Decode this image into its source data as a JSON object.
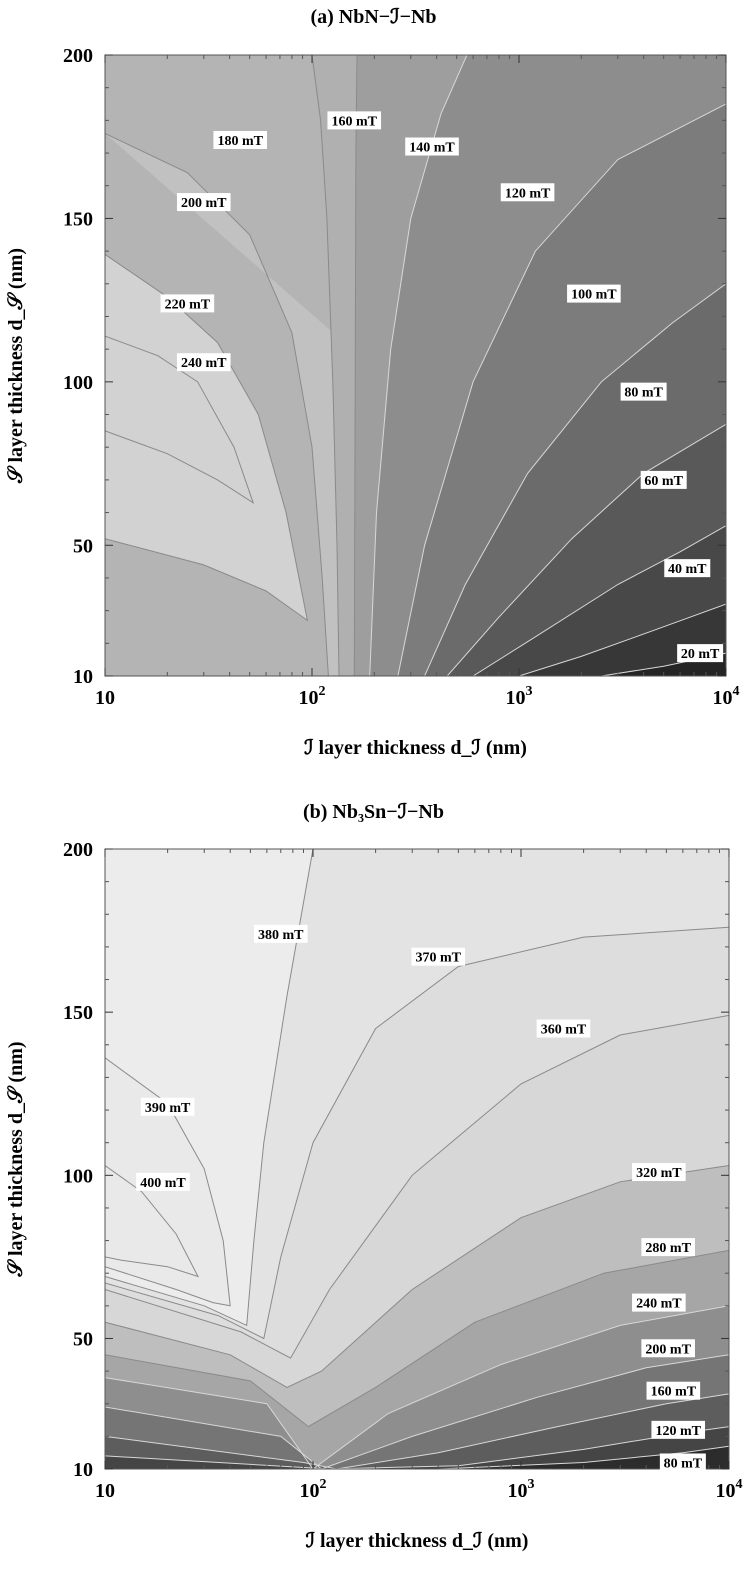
{
  "chart_data": [
    {
      "type": "contour",
      "panel": "a",
      "title": "(a) NbN−ℐ−Nb",
      "xlabel": "ℐ  layer thickness d_ℐ  (nm)",
      "ylabel": "𝒮  layer thickness d_𝒮  (nm)",
      "x_scale": "log",
      "xlim": [
        10,
        10000
      ],
      "ylim": [
        10,
        200
      ],
      "x_ticks": [
        "10",
        "10^2",
        "10^3",
        "10^4"
      ],
      "y_ticks": [
        "10",
        "50",
        "100",
        "150",
        "200"
      ],
      "grid": false,
      "contour_labels": [
        "240 mT",
        "220 mT",
        "200 mT",
        "180 mT",
        "160 mT",
        "140 mT",
        "120 mT",
        "100 mT",
        "80 mT",
        "60 mT",
        "40 mT",
        "20 mT"
      ],
      "contours": [
        {
          "level": "240 mT",
          "points": [
            [
              10,
              85
            ],
            [
              20,
              78
            ],
            [
              35,
              70
            ],
            [
              52,
              63
            ],
            [
              42,
              80
            ],
            [
              28,
              100
            ],
            [
              18,
              108
            ],
            [
              10,
              114
            ]
          ]
        },
        {
          "level": "220 mT",
          "points": [
            [
              10,
              52
            ],
            [
              30,
              44
            ],
            [
              60,
              36
            ],
            [
              95,
              27
            ],
            [
              75,
              60
            ],
            [
              55,
              90
            ],
            [
              35,
              112
            ],
            [
              20,
              126
            ],
            [
              10,
              139
            ]
          ]
        },
        {
          "level": "200 mT",
          "points": [
            [
              120,
              10
            ],
            [
              112,
              40
            ],
            [
              100,
              80
            ],
            [
              80,
              115
            ],
            [
              50,
              145
            ],
            [
              25,
              164
            ],
            [
              10,
              176
            ]
          ]
        },
        {
          "level": "180 mT",
          "points": [
            [
              135,
              10
            ],
            [
              132,
              50
            ],
            [
              126,
              100
            ],
            [
              118,
              150
            ],
            [
              110,
              180
            ],
            [
              100,
              200
            ]
          ]
        },
        {
          "level": "160 mT",
          "points": [
            [
              160,
              10
            ],
            [
              161,
              60
            ],
            [
              162,
              120
            ],
            [
              163,
              170
            ],
            [
              165,
              200
            ]
          ]
        },
        {
          "level": "140 mT",
          "points": [
            [
              190,
              10
            ],
            [
              205,
              60
            ],
            [
              240,
              110
            ],
            [
              300,
              150
            ],
            [
              420,
              182
            ],
            [
              560,
              200
            ]
          ]
        },
        {
          "level": "120 mT",
          "points": [
            [
              260,
              10
            ],
            [
              350,
              50
            ],
            [
              600,
              100
            ],
            [
              1200,
              140
            ],
            [
              3000,
              168
            ],
            [
              10000,
              185
            ]
          ]
        },
        {
          "level": "100 mT",
          "points": [
            [
              350,
              10
            ],
            [
              550,
              38
            ],
            [
              1100,
              72
            ],
            [
              2500,
              100
            ],
            [
              5500,
              118
            ],
            [
              10000,
              130
            ]
          ]
        },
        {
          "level": "80 mT",
          "points": [
            [
              450,
              10
            ],
            [
              800,
              28
            ],
            [
              1800,
              52
            ],
            [
              4000,
              72
            ],
            [
              10000,
              87
            ]
          ]
        },
        {
          "level": "60 mT",
          "points": [
            [
              600,
              10
            ],
            [
              1200,
              22
            ],
            [
              3000,
              38
            ],
            [
              6000,
              48
            ],
            [
              10000,
              56
            ]
          ]
        },
        {
          "level": "40 mT",
          "points": [
            [
              1000,
              10
            ],
            [
              2000,
              16
            ],
            [
              4500,
              24
            ],
            [
              10000,
              32
            ]
          ]
        },
        {
          "level": "20 mT",
          "points": [
            [
              2500,
              10
            ],
            [
              5000,
              13
            ],
            [
              10000,
              17
            ]
          ]
        }
      ]
    },
    {
      "type": "contour",
      "panel": "b",
      "title": "(b) Nb₃Sn−ℐ−Nb",
      "xlabel": "ℐ  layer thickness d_ℐ  (nm)",
      "ylabel": "𝒮  layer thickness d_𝒮  (nm)",
      "x_scale": "log",
      "xlim": [
        10,
        10000
      ],
      "ylim": [
        10,
        200
      ],
      "x_ticks": [
        "10",
        "10^2",
        "10^3",
        "10^4"
      ],
      "y_ticks": [
        "10",
        "50",
        "100",
        "150",
        "200"
      ],
      "grid": false,
      "contour_labels": [
        "400 mT",
        "390 mT",
        "380 mT",
        "370 mT",
        "360 mT",
        "320 mT",
        "280 mT",
        "240 mT",
        "200 mT",
        "160 mT",
        "120 mT",
        "80 mT"
      ],
      "contours": [
        {
          "level": "400 mT",
          "points": [
            [
              10,
              103
            ],
            [
              15,
              95
            ],
            [
              22,
              82
            ],
            [
              28,
              69
            ],
            [
              20,
              72
            ],
            [
              12,
              74
            ],
            [
              10,
              75
            ]
          ]
        },
        {
          "level": "390 mT",
          "points": [
            [
              10,
              136
            ],
            [
              20,
              122
            ],
            [
              30,
              102
            ],
            [
              37,
              80
            ],
            [
              40,
              60
            ],
            [
              33,
              61
            ],
            [
              22,
              65
            ],
            [
              10,
              72
            ]
          ]
        },
        {
          "level": "380 mT",
          "points": [
            [
              10,
              69
            ],
            [
              30,
              60
            ],
            [
              48,
              54
            ],
            [
              52,
              80
            ],
            [
              58,
              110
            ],
            [
              75,
              155
            ],
            [
              100,
              200
            ]
          ]
        },
        {
          "level": "370 mT",
          "points": [
            [
              10,
              67
            ],
            [
              35,
              57
            ],
            [
              58,
              50
            ],
            [
              70,
              75
            ],
            [
              100,
              110
            ],
            [
              200,
              145
            ],
            [
              500,
              164
            ],
            [
              2000,
              173
            ],
            [
              10000,
              176
            ]
          ]
        },
        {
          "level": "360 mT",
          "points": [
            [
              10,
              65
            ],
            [
              45,
              52
            ],
            [
              78,
              44
            ],
            [
              120,
              65
            ],
            [
              300,
              100
            ],
            [
              1000,
              128
            ],
            [
              3000,
              143
            ],
            [
              10000,
              149
            ]
          ]
        },
        {
          "level": "320 mT",
          "points": [
            [
              10,
              55
            ],
            [
              40,
              45
            ],
            [
              75,
              35
            ],
            [
              110,
              40
            ],
            [
              300,
              65
            ],
            [
              1000,
              87
            ],
            [
              3000,
              98
            ],
            [
              10000,
              103
            ]
          ]
        },
        {
          "level": "280 mT",
          "points": [
            [
              10,
              45
            ],
            [
              50,
              37
            ],
            [
              95,
              23
            ],
            [
              200,
              35
            ],
            [
              600,
              55
            ],
            [
              2500,
              70
            ],
            [
              10000,
              77
            ]
          ]
        },
        {
          "level": "240 mT",
          "points": [
            [
              10,
              38
            ],
            [
              60,
              30
            ],
            [
              100,
              10
            ],
            [
              230,
              27
            ],
            [
              800,
              42
            ],
            [
              3000,
              54
            ],
            [
              10000,
              60
            ]
          ]
        },
        {
          "level": "200 mT",
          "points": [
            [
              10,
              29
            ],
            [
              70,
              20
            ],
            [
              110,
              10
            ],
            [
              300,
              20
            ],
            [
              1200,
              32
            ],
            [
              4000,
              41
            ],
            [
              10000,
              45
            ]
          ]
        },
        {
          "level": "160 mT",
          "points": [
            [
              10,
              20
            ],
            [
              90,
              12
            ],
            [
              130,
              10
            ],
            [
              400,
              15
            ],
            [
              1500,
              23
            ],
            [
              5000,
              30
            ],
            [
              10000,
              33
            ]
          ]
        },
        {
          "level": "120 mT",
          "points": [
            [
              10,
              14
            ],
            [
              120,
              10
            ],
            [
              500,
              11
            ],
            [
              2000,
              16
            ],
            [
              6000,
              21
            ],
            [
              10000,
              23
            ]
          ]
        },
        {
          "level": "80 mT",
          "points": [
            [
              400,
              10
            ],
            [
              2000,
              12
            ],
            [
              6000,
              15
            ],
            [
              10000,
              17
            ]
          ]
        }
      ]
    }
  ]
}
